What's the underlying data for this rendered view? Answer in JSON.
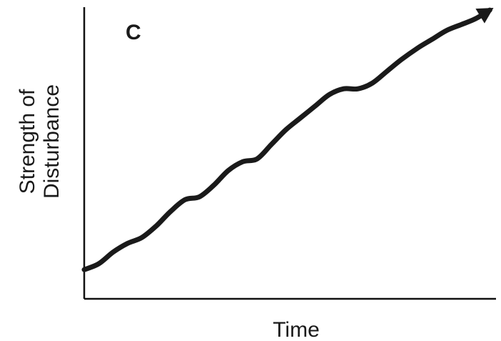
{
  "chart_data": {
    "type": "line",
    "title": "C",
    "xlabel": "Time",
    "ylabel": [
      "Strength of",
      "Disturbance"
    ],
    "xlim": [
      0,
      10
    ],
    "ylim": [
      0,
      10
    ],
    "grid": false,
    "legend": "none",
    "series": [
      {
        "values_x": [
          0,
          0.35,
          0.7,
          1.05,
          1.4,
          1.75,
          2.1,
          2.45,
          2.8,
          3.15,
          3.5,
          3.85,
          4.2,
          4.55,
          4.9,
          5.25,
          5.6,
          5.95,
          6.3,
          6.65,
          7.0,
          7.35,
          7.7,
          8.1,
          8.45,
          8.8,
          9.15,
          9.5,
          9.85
        ],
        "values_y": [
          1.0,
          1.2,
          1.6,
          1.9,
          2.1,
          2.5,
          3.0,
          3.4,
          3.5,
          3.9,
          4.4,
          4.7,
          4.8,
          5.3,
          5.8,
          6.2,
          6.6,
          7.0,
          7.2,
          7.2,
          7.4,
          7.8,
          8.2,
          8.6,
          8.9,
          9.2,
          9.4,
          9.6,
          9.9
        ]
      }
    ],
    "arrow_at_end": true,
    "colors": {
      "line": "#1a1a1a",
      "axis": "#111111",
      "background": "#ffffff"
    }
  }
}
